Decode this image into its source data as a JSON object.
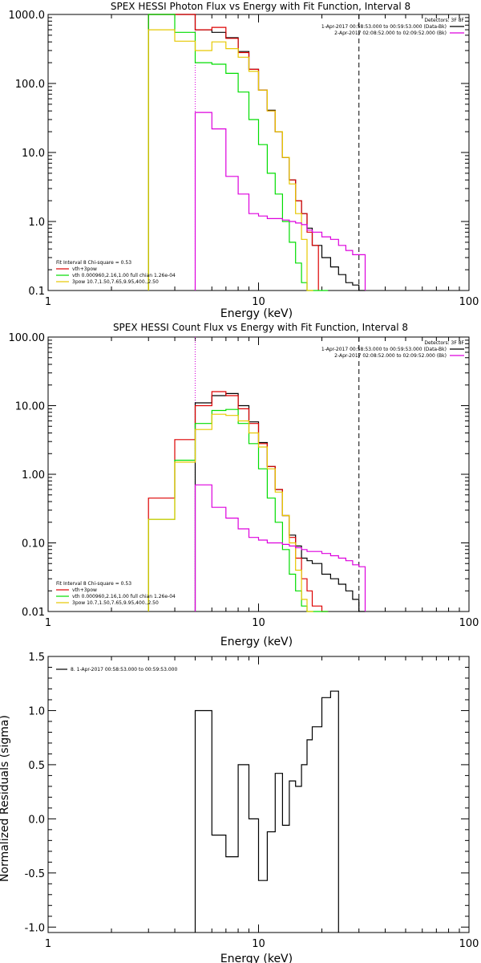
{
  "colors": {
    "black": "#000000",
    "red": "#dd0000",
    "green": "#00dd00",
    "yellow": "#e6c800",
    "magenta": "#dd00dd"
  },
  "chart_data": [
    {
      "type": "line",
      "title": "SPEX HESSI Photon Flux vs Energy with Fit Function, Interval 8",
      "xlabel": "Energy (keV)",
      "ylabel": "",
      "xscale": "log",
      "yscale": "log",
      "xlim": [
        1,
        100
      ],
      "ylim": [
        0.1,
        1000
      ],
      "xticks": [
        {
          "v": 1,
          "label": "1"
        },
        {
          "v": 10,
          "label": "10"
        },
        {
          "v": 100,
          "label": "100"
        }
      ],
      "yticks": [
        {
          "v": 0.1,
          "label": "0.1"
        },
        {
          "v": 1,
          "label": "1.0"
        },
        {
          "v": 10,
          "label": "10.0"
        },
        {
          "v": 100,
          "label": "100.0"
        },
        {
          "v": 1000,
          "label": "1000.0"
        }
      ],
      "vlines": [
        {
          "x": 5,
          "style": "dotted",
          "color": "magenta"
        },
        {
          "x": 30,
          "style": "dashed",
          "color": "black"
        }
      ],
      "legend_top": {
        "header": "Detectors: 3F 8F",
        "lines": [
          {
            "text": "1-Apr-2017 00:58:53.000 to 00:59:53.000 (Data-Bk)",
            "color": "black"
          },
          {
            "text": "2-Apr-2017 02:08:52.000 to 02:09:52.000 (Bk)",
            "color": "magenta"
          }
        ]
      },
      "legend_bottom": {
        "header": "Fit Interval 8   Chi-square = 0.53",
        "lines": [
          {
            "text": "vth+3pow",
            "color": "red"
          },
          {
            "text": "vth 0.000960,2.16,1.00  full chian 1.26e-04",
            "color": "green"
          },
          {
            "text": "3pow 10.7,1.50,7.65,9.95,400.,2.50",
            "color": "yellow"
          }
        ]
      },
      "series": [
        {
          "name": "Data-Bk",
          "color": "black",
          "x": [
            3,
            4,
            5,
            6,
            7,
            8,
            9,
            10,
            11,
            12,
            13,
            14,
            15,
            16,
            17,
            18,
            20,
            22,
            24,
            26,
            28,
            30
          ],
          "y": [
            1000,
            1000,
            600,
            550,
            460,
            290,
            160,
            80,
            41,
            20,
            8.5,
            4,
            2,
            1.3,
            0.8,
            0.45,
            0.3,
            0.22,
            0.17,
            0.13,
            0.12,
            0.1
          ]
        },
        {
          "name": "vth+3pow",
          "color": "red",
          "x": [
            3,
            4,
            5,
            6,
            7,
            8,
            9,
            10,
            11,
            12,
            13,
            14,
            15,
            16,
            17,
            18
          ],
          "y": [
            1000,
            1000,
            600,
            650,
            450,
            280,
            160,
            80,
            40,
            20,
            8.5,
            4,
            2,
            1.3,
            0.7,
            0.45
          ]
        },
        {
          "name": "vth",
          "color": "green",
          "x": [
            3,
            4,
            5,
            6,
            7,
            8,
            9,
            10,
            11,
            12,
            13,
            14,
            15,
            16,
            17,
            18,
            20
          ],
          "y": [
            1000,
            550,
            200,
            190,
            140,
            75,
            30,
            13,
            5,
            2.5,
            1,
            0.5,
            0.25,
            0.13,
            0.1,
            0.1,
            0.1
          ]
        },
        {
          "name": "3pow",
          "color": "yellow",
          "x": [
            3,
            4,
            5,
            6,
            7,
            8,
            9,
            10,
            11,
            12,
            13,
            14,
            15,
            16,
            17
          ],
          "y": [
            600,
            410,
            300,
            400,
            320,
            240,
            150,
            80,
            40,
            20,
            8.5,
            3.5,
            1.3,
            0.55,
            0.1
          ]
        },
        {
          "name": "Bk",
          "color": "magenta",
          "x": [
            5,
            6,
            7,
            8,
            9,
            10,
            11,
            12,
            13,
            14,
            15,
            16,
            17,
            18,
            20,
            22,
            24,
            26,
            28,
            30
          ],
          "y": [
            38,
            22,
            4.5,
            2.5,
            1.3,
            1.2,
            1.1,
            1.1,
            1.05,
            1.0,
            0.95,
            0.9,
            0.75,
            0.7,
            0.6,
            0.55,
            0.45,
            0.38,
            0.33,
            0.33
          ]
        }
      ]
    },
    {
      "type": "line",
      "title": "SPEX HESSI Count Flux vs Energy with Fit Function, Interval 8",
      "xlabel": "Energy (keV)",
      "ylabel": "",
      "xscale": "log",
      "yscale": "log",
      "xlim": [
        1,
        100
      ],
      "ylim": [
        0.01,
        100
      ],
      "xticks": [
        {
          "v": 1,
          "label": "1"
        },
        {
          "v": 10,
          "label": "10"
        },
        {
          "v": 100,
          "label": "100"
        }
      ],
      "yticks": [
        {
          "v": 0.01,
          "label": "0.01"
        },
        {
          "v": 0.1,
          "label": "0.10"
        },
        {
          "v": 1,
          "label": "1.00"
        },
        {
          "v": 10,
          "label": "10.00"
        },
        {
          "v": 100,
          "label": "100.00"
        }
      ],
      "vlines": [
        {
          "x": 5,
          "style": "dotted",
          "color": "black"
        },
        {
          "x": 5,
          "style": "dotted",
          "color": "magenta"
        },
        {
          "x": 30,
          "style": "dashed",
          "color": "black"
        }
      ],
      "legend_top": {
        "header": "Detectors: 3F 8F",
        "lines": [
          {
            "text": "1-Apr-2017 00:58:53.000 to 00:59:53.000 (Data-Bk)",
            "color": "black"
          },
          {
            "text": "2-Apr-2017 02:08:52.000 to 02:09:52.000 (Bk)",
            "color": "magenta"
          }
        ]
      },
      "legend_bottom": {
        "header": "Fit Interval 8   Chi-square = 0.53",
        "lines": [
          {
            "text": "vth+3pow",
            "color": "red"
          },
          {
            "text": "vth 0.000960,2.16,1.00  full chian 1.26e-04",
            "color": "green"
          },
          {
            "text": "3pow 10.7,1.50,7.65,9.95,400.,2.50",
            "color": "yellow"
          }
        ]
      },
      "series": [
        {
          "name": "Data-Bk",
          "color": "black",
          "x": [
            5,
            6,
            7,
            8,
            9,
            10,
            11,
            12,
            13,
            14,
            15,
            16,
            17,
            18,
            20,
            22,
            24,
            26,
            28,
            30
          ],
          "y": [
            11,
            14,
            15,
            10,
            5.8,
            2.9,
            1.3,
            0.6,
            0.25,
            0.13,
            0.09,
            0.06,
            0.055,
            0.05,
            0.035,
            0.03,
            0.025,
            0.02,
            0.015,
            0.01
          ]
        },
        {
          "name": "vth+3pow",
          "color": "red",
          "x": [
            3,
            4,
            5,
            6,
            7,
            8,
            9,
            10,
            11,
            12,
            13,
            14,
            15,
            16,
            17,
            18,
            20
          ],
          "y": [
            0.45,
            3.2,
            10,
            16,
            14,
            9,
            5.5,
            2.8,
            1.3,
            0.6,
            0.25,
            0.12,
            0.06,
            0.03,
            0.02,
            0.012,
            0.01
          ]
        },
        {
          "name": "vth",
          "color": "green",
          "x": [
            3,
            4,
            5,
            6,
            7,
            8,
            9,
            10,
            11,
            12,
            13,
            14,
            15,
            16,
            17,
            18,
            20
          ],
          "y": [
            0.22,
            1.6,
            5.5,
            8.5,
            8.8,
            5.5,
            2.8,
            1.2,
            0.45,
            0.2,
            0.08,
            0.035,
            0.02,
            0.012,
            0.01,
            0.01,
            0.01
          ]
        },
        {
          "name": "3pow",
          "color": "yellow",
          "x": [
            3,
            4,
            5,
            6,
            7,
            8,
            9,
            10,
            11,
            12,
            13,
            14,
            15,
            16,
            17
          ],
          "y": [
            0.22,
            1.5,
            4.5,
            7.5,
            7.2,
            6,
            4,
            2.5,
            1.2,
            0.55,
            0.25,
            0.1,
            0.04,
            0.015,
            0.01
          ]
        },
        {
          "name": "Bk",
          "color": "magenta",
          "x": [
            5,
            6,
            7,
            8,
            9,
            10,
            11,
            12,
            13,
            14,
            15,
            16,
            17,
            18,
            20,
            22,
            24,
            26,
            28,
            30
          ],
          "y": [
            0.7,
            0.33,
            0.23,
            0.16,
            0.12,
            0.11,
            0.1,
            0.1,
            0.095,
            0.09,
            0.085,
            0.08,
            0.075,
            0.075,
            0.07,
            0.065,
            0.06,
            0.055,
            0.048,
            0.045
          ]
        }
      ]
    },
    {
      "type": "line",
      "title": "",
      "xlabel": "Energy (keV)",
      "ylabel": "Normalized Residuals (sigma)",
      "xscale": "log",
      "yscale": "linear",
      "xlim": [
        1,
        100
      ],
      "ylim": [
        -1.05,
        1.5
      ],
      "xticks": [
        {
          "v": 1,
          "label": "1"
        },
        {
          "v": 10,
          "label": "10"
        },
        {
          "v": 100,
          "label": "100"
        }
      ],
      "yticks": [
        {
          "v": -1.0,
          "label": "-1.0"
        },
        {
          "v": -0.5,
          "label": "-0.5"
        },
        {
          "v": 0.0,
          "label": "0.0"
        },
        {
          "v": 0.5,
          "label": "0.5"
        },
        {
          "v": 1.0,
          "label": "1.0"
        },
        {
          "v": 1.5,
          "label": "1.5"
        }
      ],
      "legend": {
        "text": "8. 1-Apr-2017 00:58:53.000 to 00:59:53.000",
        "color": "black"
      },
      "series": [
        {
          "name": "8. 1-Apr-2017 00:58:53.000 to 00:59:53.000",
          "color": "black",
          "x": [
            5,
            6,
            7,
            8,
            9,
            10,
            11,
            12,
            13,
            14,
            15,
            16,
            17,
            18,
            20,
            22,
            24,
            26,
            28,
            30
          ],
          "y": [
            1.0,
            -0.15,
            -0.35,
            0.5,
            0.0,
            -0.57,
            -0.12,
            0.42,
            -0.06,
            0.35,
            0.3,
            0.5,
            0.73,
            0.85,
            1.12,
            1.18,
            null,
            null,
            null,
            null
          ]
        }
      ]
    }
  ]
}
